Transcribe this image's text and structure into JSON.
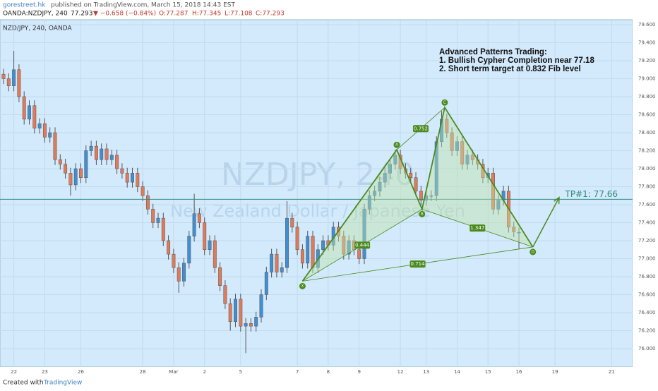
{
  "header": {
    "publisher": "gorestreet.hk",
    "published": "published on TradingView.com, March 15, 2018 14:43 EST",
    "symbol": "OANDA:NZDJPY, 240",
    "last": "77.293",
    "change": "▼ −0.658 (−0.84%)",
    "open": "O:77.287",
    "high": "H:77.345",
    "low": "L:77.108",
    "close": "C:77.293"
  },
  "footer": {
    "created": "Created with",
    "brand": "TradingView"
  },
  "chart_data": {
    "type": "candlestick",
    "label": "NZD/JPY, 240, OANDA",
    "watermark": "NZDJPY, 240",
    "watermark_sub": "New Zealand Dollar / Japanese Yen",
    "up_color": "#3f8fd2",
    "down_color": "#e07a58",
    "background": "#d3e9fc",
    "grid": true,
    "open": [
      79.05,
      79.0,
      78.92,
      79.1,
      78.8,
      78.55,
      78.7,
      78.45,
      78.5,
      78.35,
      78.4,
      78.1,
      78.05,
      77.95,
      77.82,
      78.0,
      77.9,
      78.2,
      78.25,
      78.1,
      78.22,
      78.1,
      78.15,
      78.0,
      77.95,
      77.85,
      77.95,
      77.8,
      77.7,
      77.55,
      77.4,
      77.45,
      77.2,
      77.05,
      76.9,
      76.75,
      76.95,
      77.25,
      77.5,
      77.4,
      77.1,
      77.2,
      76.9,
      76.7,
      76.5,
      76.3,
      76.55,
      76.25,
      76.28,
      76.25,
      76.35,
      76.6,
      76.85,
      77.05,
      76.85,
      76.9,
      77.45,
      77.35,
      77.1,
      76.95,
      77.25,
      76.9,
      77.1,
      77.2,
      77.15,
      77.35,
      77.25,
      77.05,
      77.2,
      77.1,
      77.0,
      77.55,
      77.7,
      77.75,
      77.85,
      77.95,
      78.05,
      78.15,
      78.0,
      77.95,
      77.9,
      77.75,
      77.65,
      77.7,
      77.7,
      78.3,
      78.55,
      78.4,
      78.2,
      78.3,
      78.05,
      78.15,
      78.1,
      78.05,
      77.9,
      77.95,
      77.55,
      77.65,
      77.75,
      77.35,
      77.287
    ],
    "high": [
      79.11,
      79.06,
      79.31,
      79.16,
      78.86,
      78.76,
      78.76,
      78.56,
      78.56,
      78.46,
      78.46,
      78.16,
      78.11,
      78.01,
      78.06,
      78.06,
      78.26,
      78.31,
      78.31,
      78.28,
      78.28,
      78.21,
      78.21,
      78.06,
      78.01,
      78.01,
      78.01,
      77.86,
      77.76,
      77.61,
      77.51,
      77.51,
      77.26,
      77.11,
      76.96,
      77.01,
      77.31,
      77.72,
      77.56,
      77.46,
      77.26,
      77.26,
      76.96,
      76.76,
      76.56,
      76.61,
      76.61,
      76.34,
      76.34,
      76.41,
      76.66,
      76.91,
      77.11,
      77.11,
      76.96,
      77.64,
      77.51,
      77.41,
      77.16,
      77.31,
      77.31,
      77.16,
      77.26,
      77.26,
      77.41,
      77.41,
      77.31,
      77.26,
      77.26,
      77.16,
      77.61,
      77.76,
      77.81,
      77.91,
      78.01,
      78.11,
      78.21,
      78.21,
      78.06,
      78.01,
      77.96,
      77.81,
      77.76,
      77.76,
      78.36,
      78.64,
      78.61,
      78.46,
      78.36,
      78.36,
      78.21,
      78.21,
      78.16,
      78.11,
      78.01,
      78.01,
      77.71,
      77.81,
      77.81,
      77.41,
      77.345
    ],
    "low": [
      78.94,
      78.86,
      78.86,
      78.74,
      78.49,
      78.49,
      78.39,
      78.39,
      78.29,
      78.29,
      78.04,
      77.99,
      77.89,
      77.7,
      77.76,
      77.84,
      77.84,
      78.14,
      78.04,
      78.04,
      78.04,
      78.04,
      77.94,
      77.89,
      77.79,
      77.79,
      77.74,
      77.64,
      77.49,
      77.34,
      77.34,
      77.14,
      76.99,
      76.84,
      76.62,
      76.69,
      76.89,
      77.19,
      77.34,
      77.04,
      77.04,
      76.84,
      76.64,
      76.44,
      76.2,
      76.24,
      76.19,
      75.95,
      76.19,
      76.19,
      76.29,
      76.54,
      76.79,
      76.79,
      76.79,
      76.84,
      77.29,
      77.04,
      76.89,
      76.89,
      76.84,
      76.84,
      77.04,
      77.09,
      77.09,
      77.19,
      76.99,
      76.99,
      77.04,
      76.94,
      76.94,
      77.49,
      77.64,
      77.69,
      77.79,
      77.89,
      77.99,
      77.94,
      77.89,
      77.84,
      77.69,
      77.59,
      77.59,
      77.64,
      77.64,
      78.24,
      78.34,
      78.14,
      78.14,
      77.99,
      77.99,
      78.04,
      77.99,
      77.84,
      77.84,
      77.49,
      77.49,
      77.59,
      77.29,
      77.24,
      77.108
    ],
    "close": [
      79.0,
      78.92,
      79.1,
      78.8,
      78.55,
      78.7,
      78.45,
      78.5,
      78.35,
      78.4,
      78.1,
      78.05,
      77.95,
      77.82,
      78.0,
      77.9,
      78.2,
      78.25,
      78.1,
      78.22,
      78.1,
      78.15,
      78.0,
      77.95,
      77.85,
      77.95,
      77.8,
      77.7,
      77.55,
      77.4,
      77.45,
      77.2,
      77.05,
      76.9,
      76.75,
      76.95,
      77.25,
      77.5,
      77.4,
      77.1,
      77.2,
      76.9,
      76.7,
      76.5,
      76.3,
      76.55,
      76.25,
      76.28,
      76.25,
      76.35,
      76.6,
      76.85,
      77.05,
      76.85,
      76.9,
      77.45,
      77.35,
      77.1,
      76.95,
      77.25,
      76.9,
      77.1,
      77.2,
      77.15,
      77.35,
      77.25,
      77.05,
      77.2,
      77.1,
      77.0,
      77.55,
      77.7,
      77.75,
      77.85,
      77.95,
      78.05,
      78.15,
      78.0,
      77.95,
      77.9,
      77.75,
      77.65,
      77.7,
      77.7,
      78.3,
      78.55,
      78.4,
      78.2,
      78.3,
      78.05,
      78.15,
      78.1,
      78.05,
      77.9,
      77.95,
      77.55,
      77.65,
      77.75,
      77.35,
      77.3,
      77.293
    ],
    "xlim": [
      -0.685,
      122.05
    ],
    "ylim": [
      75.796,
      79.655
    ],
    "xticks": [
      {
        "value": 2,
        "label": "22"
      },
      {
        "value": 8,
        "label": "23"
      },
      {
        "value": 15,
        "label": "26"
      },
      {
        "value": 27,
        "label": "28"
      },
      {
        "value": 33,
        "label": "Mar"
      },
      {
        "value": 39,
        "label": "2"
      },
      {
        "value": 46,
        "label": "5"
      },
      {
        "value": 57,
        "label": "7"
      },
      {
        "value": 63,
        "label": "8"
      },
      {
        "value": 69,
        "label": "9"
      },
      {
        "value": 77,
        "label": "12"
      },
      {
        "value": 82,
        "label": "13"
      },
      {
        "value": 88,
        "label": "14"
      },
      {
        "value": 94,
        "label": "15"
      },
      {
        "value": 100,
        "label": "16"
      },
      {
        "value": 107,
        "label": "19"
      },
      {
        "value": 118,
        "label": "21"
      }
    ],
    "yticks": [
      {
        "value": 79.6,
        "label": "79.600"
      },
      {
        "value": 79.4,
        "label": "79.400"
      },
      {
        "value": 79.2,
        "label": "79.200"
      },
      {
        "value": 79.0,
        "label": "79.000"
      },
      {
        "value": 78.8,
        "label": "78.800"
      },
      {
        "value": 78.6,
        "label": "78.600"
      },
      {
        "value": 78.4,
        "label": "78.400"
      },
      {
        "value": 78.2,
        "label": "78.200"
      },
      {
        "value": 78.0,
        "label": "78.000"
      },
      {
        "value": 77.8,
        "label": "77.800"
      },
      {
        "value": 77.6,
        "label": "77.600"
      },
      {
        "value": 77.4,
        "label": "77.400"
      },
      {
        "value": 77.2,
        "label": "77.200"
      },
      {
        "value": 77.0,
        "label": "77.000"
      },
      {
        "value": 76.8,
        "label": "76.800"
      },
      {
        "value": 76.6,
        "label": "76.600"
      },
      {
        "value": 76.4,
        "label": "76.400"
      },
      {
        "value": 76.2,
        "label": "76.200"
      },
      {
        "value": 76.0,
        "label": "76.000"
      }
    ],
    "target": {
      "label": "TP#1: 77.66",
      "value": 77.66,
      "color": "#2e8b7a"
    },
    "pattern": {
      "color": "#4b8a1e",
      "fill": "#bfe3a8",
      "points": [
        {
          "name": "X",
          "x": 58,
          "y": 76.75
        },
        {
          "name": "A",
          "x": 76.3,
          "y": 78.21
        },
        {
          "name": "B",
          "x": 81.2,
          "y": 77.55
        },
        {
          "name": "C",
          "x": 85.6,
          "y": 78.68
        },
        {
          "name": "D",
          "x": 102.7,
          "y": 77.13
        }
      ],
      "ratios": [
        {
          "value": 0.444,
          "from": 0,
          "to": 2
        },
        {
          "value": 0.752,
          "from": 1,
          "to": 3
        },
        {
          "value": 1.347,
          "from": 2,
          "to": 4
        },
        {
          "value": 0.714,
          "from": 0,
          "to": 4
        }
      ],
      "projection": {
        "x": 107.8,
        "y": 77.68
      }
    },
    "annotation": [
      "Advanced Patterns Trading:",
      "1. Bullish Cypher Completion near 77.18",
      "2. Short term target at 0.832 Fib level"
    ]
  }
}
